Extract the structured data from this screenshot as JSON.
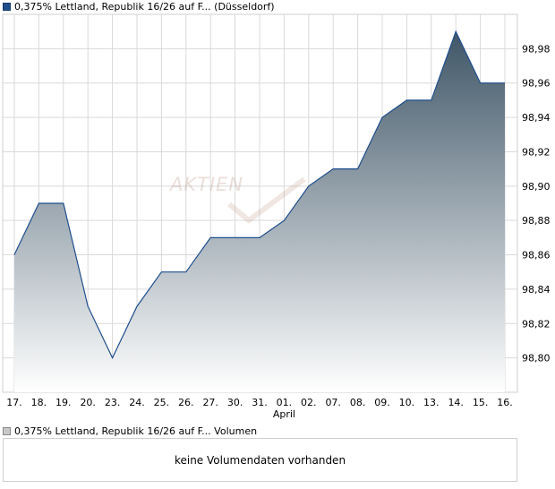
{
  "legend": {
    "main_label": "0,375% Lettland, Republik 16/26 auf F... (Düsseldorf)",
    "volume_label": "0,375% Lettland, Republik 16/26 auf F... Volumen"
  },
  "volume_panel": {
    "message": "keine Volumendaten vorhanden"
  },
  "watermark": "AKTIEN",
  "colors": {
    "line": "#1f4e8c",
    "fill_top": "#3f5667",
    "fill_bottom": "#ffffff",
    "grid": "#d9d9d9"
  },
  "chart_data": {
    "type": "area",
    "categories": [
      "17.",
      "18.",
      "19.",
      "20.",
      "23.",
      "24.",
      "25.",
      "26.",
      "27.",
      "30.",
      "31.",
      "01.",
      "02.",
      "07.",
      "08.",
      "09.",
      "10.",
      "13.",
      "14.",
      "15.",
      "16."
    ],
    "x_sublabels": {
      "01.": "April"
    },
    "series": [
      {
        "values": [
          98.86,
          98.89,
          98.89,
          98.83,
          98.8,
          98.83,
          98.85,
          98.85,
          98.87,
          98.87,
          98.87,
          98.88,
          98.9,
          98.91,
          98.91,
          98.94,
          98.95,
          98.95,
          98.99,
          98.96,
          98.96
        ]
      }
    ],
    "y_ticks": [
      "98,80",
      "98,82",
      "98,84",
      "98,86",
      "98,88",
      "98,90",
      "98,92",
      "98,94",
      "98,96",
      "98,98"
    ],
    "ylim": [
      98.78,
      99.0
    ],
    "grid": true,
    "y_axis_position": "right"
  }
}
